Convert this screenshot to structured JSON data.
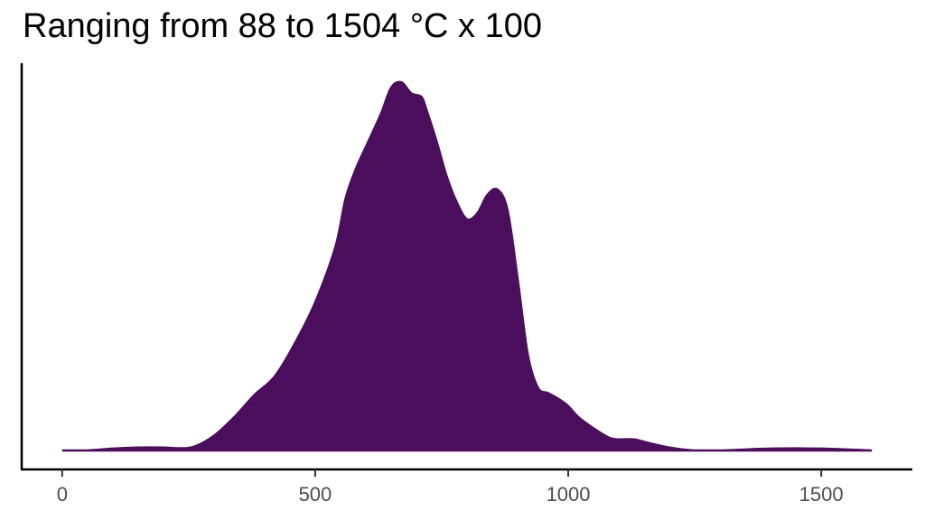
{
  "colors": {
    "fill": "#4a0e5c",
    "axis": "#000000",
    "tick_text": "#4d4d4d"
  },
  "chart_data": {
    "type": "area",
    "title": "Ranging from 88 to 1504 °C x 100",
    "xlabel": "",
    "ylabel": "",
    "xlim": [
      -80,
      1680
    ],
    "ylim": [
      0,
      1
    ],
    "grid": false,
    "legend": "none",
    "x_ticks": [
      0,
      500,
      1000,
      1500
    ],
    "series": [
      {
        "x": [
          0,
          50,
          100,
          150,
          200,
          230,
          260,
          300,
          340,
          380,
          420,
          460,
          500,
          540,
          560,
          580,
          600,
          630,
          650,
          670,
          690,
          710,
          720,
          740,
          760,
          780,
          800,
          820,
          840,
          860,
          880,
          900,
          920,
          940,
          960,
          980,
          1000,
          1020,
          1050,
          1080,
          1100,
          1130,
          1160,
          1200,
          1250,
          1300,
          1400,
          1500,
          1600
        ],
        "y": [
          0.0,
          0.0,
          0.005,
          0.008,
          0.008,
          0.006,
          0.01,
          0.04,
          0.09,
          0.15,
          0.2,
          0.29,
          0.4,
          0.55,
          0.68,
          0.76,
          0.82,
          0.91,
          0.98,
          0.995,
          0.965,
          0.955,
          0.92,
          0.835,
          0.74,
          0.67,
          0.625,
          0.64,
          0.69,
          0.705,
          0.65,
          0.465,
          0.26,
          0.17,
          0.155,
          0.14,
          0.12,
          0.09,
          0.06,
          0.035,
          0.03,
          0.03,
          0.02,
          0.008,
          0.0,
          0.0,
          0.005,
          0.005,
          0.0
        ]
      }
    ]
  }
}
